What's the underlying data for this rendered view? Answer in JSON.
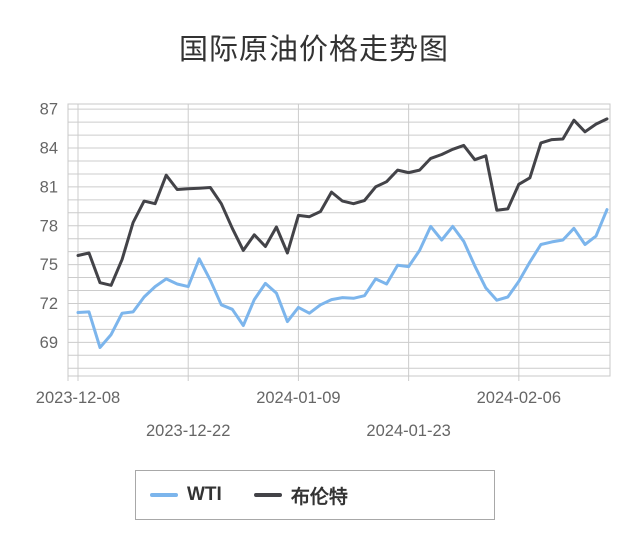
{
  "chart_data": {
    "type": "line",
    "title": "国际原油价格走势图",
    "xlabel": "",
    "ylabel": "",
    "grid": true,
    "legend_position": "bottom",
    "ylim": [
      66.4,
      87.4
    ],
    "y_ticks": [
      69,
      72,
      75,
      78,
      81,
      84,
      87
    ],
    "x_tick_labels": [
      "2023-12-08",
      "2023-12-22",
      "2024-01-09",
      "2024-01-23",
      "2024-02-06"
    ],
    "x_tick_indices": [
      0,
      10,
      20,
      30,
      40
    ],
    "dates": [
      "2023-12-08",
      "2023-12-11",
      "2023-12-12",
      "2023-12-13",
      "2023-12-14",
      "2023-12-15",
      "2023-12-18",
      "2023-12-19",
      "2023-12-20",
      "2023-12-21",
      "2023-12-22",
      "2023-12-26",
      "2023-12-27",
      "2023-12-28",
      "2023-12-29",
      "2024-01-02",
      "2024-01-03",
      "2024-01-04",
      "2024-01-05",
      "2024-01-08",
      "2024-01-09",
      "2024-01-10",
      "2024-01-11",
      "2024-01-12",
      "2024-01-15",
      "2024-01-16",
      "2024-01-17",
      "2024-01-18",
      "2024-01-19",
      "2024-01-22",
      "2024-01-23",
      "2024-01-24",
      "2024-01-25",
      "2024-01-26",
      "2024-01-29",
      "2024-01-30",
      "2024-01-31",
      "2024-02-01",
      "2024-02-02",
      "2024-02-05",
      "2024-02-06",
      "2024-02-07",
      "2024-02-08",
      "2024-02-09",
      "2024-02-12",
      "2024-02-13",
      "2024-02-14",
      "2024-02-15",
      "2024-02-16"
    ],
    "series": [
      {
        "name": "WTI",
        "color": "#7cb5ec",
        "values": [
          71.3,
          71.35,
          68.6,
          69.6,
          71.25,
          71.35,
          72.5,
          73.3,
          73.9,
          73.5,
          73.3,
          75.45,
          73.8,
          71.9,
          71.55,
          70.3,
          72.3,
          73.55,
          72.8,
          70.6,
          71.7,
          71.25,
          71.9,
          72.3,
          72.45,
          72.4,
          72.6,
          73.9,
          73.5,
          74.95,
          74.85,
          76.1,
          77.95,
          76.9,
          77.95,
          76.8,
          74.9,
          73.2,
          72.25,
          72.5,
          73.7,
          75.2,
          76.55,
          76.75,
          76.9,
          77.8,
          76.55,
          77.2,
          79.25
        ]
      },
      {
        "name": "布伦特",
        "color": "#434348",
        "values": [
          75.7,
          75.9,
          73.6,
          73.4,
          75.4,
          78.25,
          79.9,
          79.7,
          81.9,
          80.8,
          80.85,
          80.9,
          80.95,
          79.7,
          77.8,
          76.1,
          77.3,
          76.4,
          77.9,
          75.9,
          78.8,
          78.7,
          79.1,
          80.6,
          79.9,
          79.7,
          79.95,
          81.0,
          81.4,
          82.3,
          82.1,
          82.3,
          83.2,
          83.5,
          83.9,
          84.2,
          83.1,
          83.4,
          79.2,
          79.3,
          81.2,
          81.7,
          84.4,
          84.65,
          84.7,
          86.15,
          85.25,
          85.85,
          86.25
        ]
      }
    ],
    "colors": {
      "grid": "#cccccc",
      "plot_border": "#c8c8c8",
      "axis_label": "#666666",
      "title": "#333333"
    }
  }
}
